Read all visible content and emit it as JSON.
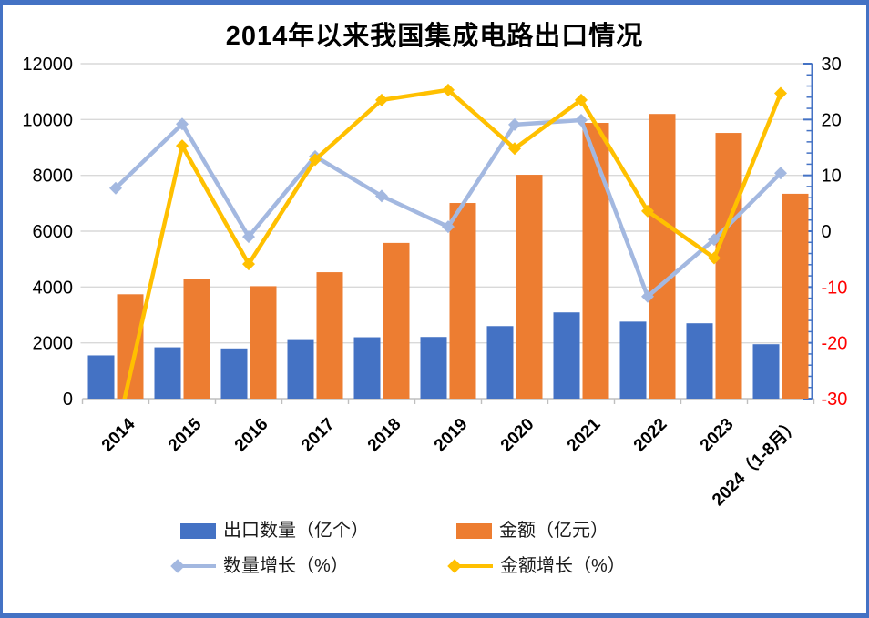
{
  "frame": {
    "border_color": "#4472C4",
    "background": "#FFFFFF"
  },
  "chart_data": {
    "type": "combo-bar-line",
    "title": "2014年以来我国集成电路出口情况",
    "categories": [
      "2014",
      "2015",
      "2016",
      "2017",
      "2018",
      "2019",
      "2020",
      "2021",
      "2022",
      "2023",
      "2024（1-8月）"
    ],
    "series": [
      {
        "name": "出口数量（亿个）",
        "type": "bar",
        "axis": "left",
        "color": "#4472C4",
        "values": [
          1550,
          1840,
          1800,
          2100,
          2200,
          2210,
          2600,
          3090,
          2760,
          2700,
          1950
        ]
      },
      {
        "name": "金额（亿元）",
        "type": "bar",
        "axis": "left",
        "color": "#ED7D31",
        "values": [
          3740,
          4300,
          4030,
          4530,
          5580,
          7010,
          8020,
          9880,
          10200,
          9520,
          7340
        ]
      },
      {
        "name": "数量增长（%）",
        "type": "line",
        "axis": "right",
        "color": "#A3B8E0",
        "values": [
          7.7,
          19.2,
          -1.0,
          13.4,
          6.3,
          0.8,
          19.1,
          19.9,
          -11.7,
          -1.5,
          10.4
        ]
      },
      {
        "name": "金额增长（%）",
        "type": "line",
        "axis": "right",
        "color": "#FFC000",
        "values": [
          -37,
          15.3,
          -5.9,
          12.8,
          23.5,
          25.3,
          14.8,
          23.5,
          3.6,
          -4.8,
          24.7
        ]
      }
    ],
    "left_axis": {
      "min": 0,
      "max": 12000,
      "step": 2000,
      "tick_labels": [
        "0",
        "2000",
        "4000",
        "6000",
        "8000",
        "10000",
        "12000"
      ]
    },
    "right_axis": {
      "min": -30,
      "max": 30,
      "step": 10,
      "minor_step": 2,
      "tick_labels": [
        "30",
        "20",
        "10",
        "0",
        "-10",
        "-20",
        "-30"
      ],
      "negative_label_color": "#FF0000",
      "axis_color": "#4472C4"
    },
    "style": {
      "gridline_color": "#D9D9D9",
      "category_axis_color": "#BFBFBF",
      "label_color": "#000000",
      "grid": "horizontal-only",
      "legend_position": "bottom"
    }
  }
}
